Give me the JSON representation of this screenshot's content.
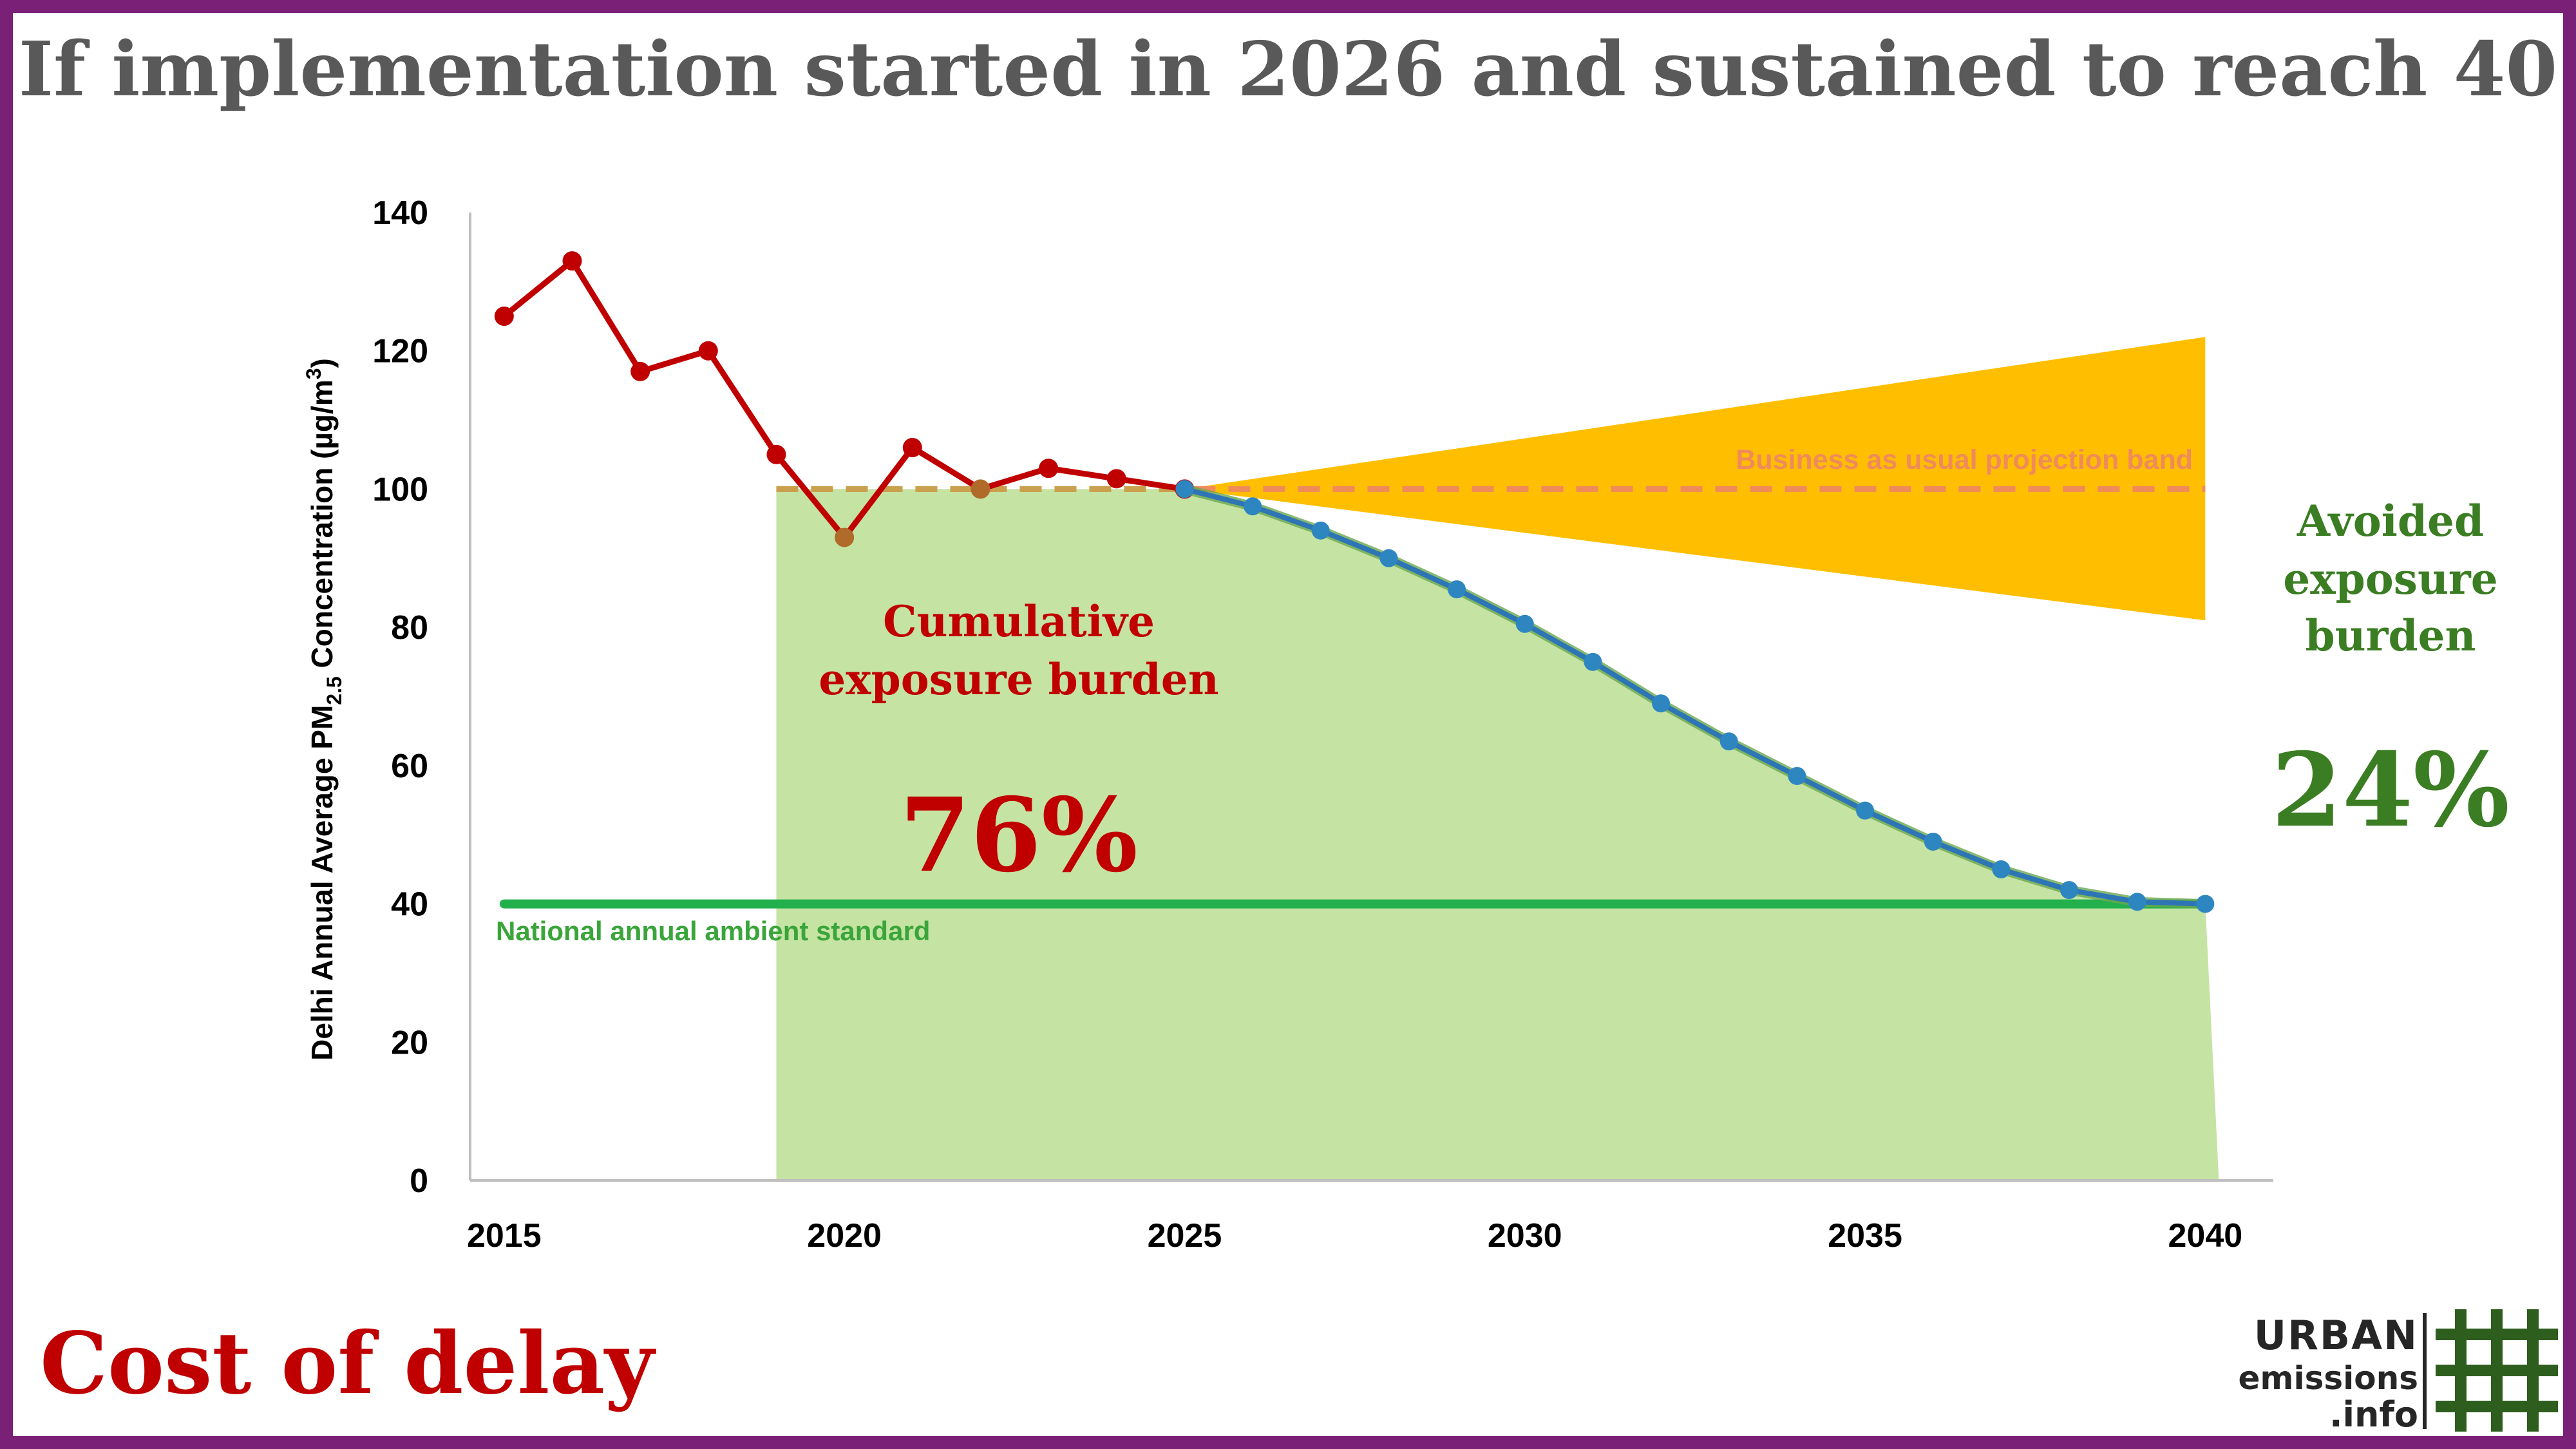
{
  "title": "If implementation started in 2026 and sustained to reach 40",
  "footer_title": "Cost of delay",
  "logo": {
    "line1": "URBAN",
    "line2": "emissions",
    "line3": ".info",
    "icon": "hash-grid-icon",
    "color": "#2e5e1e"
  },
  "colors": {
    "frame": "#7b2077",
    "title": "#595959",
    "historical": "#c00000",
    "projection": "#2e75b6",
    "projection_dots": "#2e86c1",
    "exposure_area": "#c5e3a3",
    "bau_band": "#ffbf00",
    "bau_line": "#f08a5a",
    "standard": "#22b04d",
    "avoided_text": "#3a7d22",
    "cumulative_text": "#c00000"
  },
  "chart_data": {
    "type": "line",
    "title": "",
    "xlabel": "",
    "ylabel": "Delhi Annual Average PM2.5 Concentration (µg/m3)",
    "ylabel_parts": {
      "prefix": "Delhi Annual Average PM",
      "sub": "2.5",
      "mid": " Concentration (µg/m",
      "sup": "3",
      "suffix": ")"
    },
    "xlim": [
      2014.5,
      2041
    ],
    "ylim": [
      0,
      140
    ],
    "x_ticks": [
      "2015",
      "2020",
      "2025",
      "2030",
      "2035",
      "2040"
    ],
    "x_tick_values": [
      2015,
      2020,
      2025,
      2030,
      2035,
      2040
    ],
    "y_ticks": [
      "0",
      "20",
      "40",
      "60",
      "80",
      "100",
      "120",
      "140"
    ],
    "y_tick_values": [
      0,
      20,
      40,
      60,
      80,
      100,
      120,
      140
    ],
    "grid": false,
    "series": [
      {
        "key": "historical",
        "x": [
          2015,
          2016,
          2017,
          2018,
          2019,
          2020,
          2021,
          2022,
          2023,
          2024,
          2025
        ],
        "values": [
          125,
          133,
          117,
          120,
          105,
          93,
          106,
          100,
          103,
          101.5,
          100
        ]
      },
      {
        "key": "projection",
        "x": [
          2025,
          2026,
          2027,
          2028,
          2029,
          2030,
          2031,
          2032,
          2033,
          2034,
          2035,
          2036,
          2037,
          2038,
          2039,
          2040
        ],
        "values": [
          100,
          97.5,
          94,
          90,
          85.5,
          80.5,
          75,
          69,
          63.5,
          58.5,
          53.5,
          49,
          45,
          42,
          40.3,
          40
        ]
      }
    ],
    "bau_baseline": {
      "x": [
        2019,
        2040
      ],
      "value": 100
    },
    "bau_band": {
      "x_start": 2025,
      "x_end": 2040,
      "start": 100,
      "upper_end": 122,
      "lower_end": 81
    },
    "exposure_area": {
      "x_start": 2019,
      "x_end": 2040.2
    },
    "standard": {
      "value": 40,
      "x": [
        2015,
        2040
      ]
    },
    "annotations": {
      "bau_label": "Business as usual projection band",
      "standard_label": "National annual ambient standard",
      "cumulative_line1": "Cumulative",
      "cumulative_line2": "exposure burden",
      "cumulative_pct": "76%",
      "avoided_line1": "Avoided",
      "avoided_line2": "exposure",
      "avoided_line3": "burden",
      "avoided_pct": "24%"
    }
  }
}
